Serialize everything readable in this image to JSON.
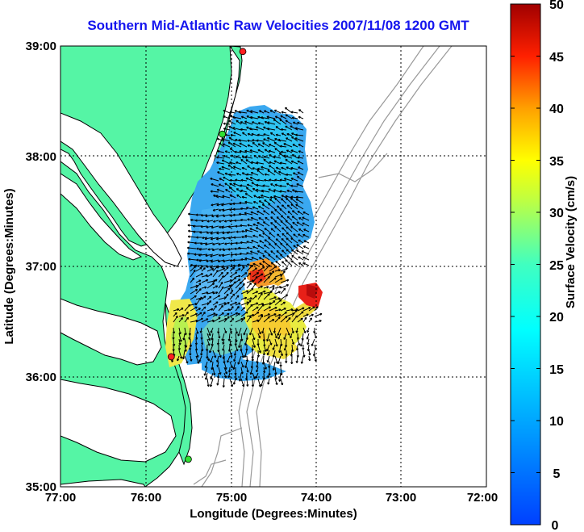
{
  "title": "Southern Mid-Atlantic Raw Velocities 2007/11/08 1200 GMT",
  "x_axis": {
    "label": "Longitude (Degrees:Minutes)",
    "ticks": [
      "77:00",
      "76:00",
      "75:00",
      "74:00",
      "73:00",
      "72:00"
    ]
  },
  "y_axis": {
    "label": "Latitude (Degrees:Minutes)",
    "ticks": [
      "39:00",
      "38:00",
      "37:00",
      "36:00",
      "35:00"
    ]
  },
  "colorbar": {
    "label": "Surface Velocity (cm/s)",
    "ticks": [
      "50",
      "45",
      "40",
      "35",
      "30",
      "25",
      "20",
      "15",
      "10",
      "5",
      "0"
    ],
    "min": 0,
    "max": 50,
    "colormap": "jet"
  },
  "map_extent": {
    "lon_west": -77,
    "lon_east": -72,
    "lat_south": 35,
    "lat_north": 39
  },
  "colors": {
    "title": "#1515ee",
    "land": "#55f5a5",
    "bathymetry": "#999999",
    "grid": "#000000",
    "station": "#ff2020",
    "station_alt": "#30e030"
  },
  "stations": [
    {
      "lon": -74.86,
      "lat": 38.95,
      "color": "red"
    },
    {
      "lon": -75.1,
      "lat": 38.2,
      "color": "green"
    },
    {
      "lon": -75.7,
      "lat": 36.18,
      "color": "red"
    },
    {
      "lon": -75.5,
      "lat": 35.25,
      "color": "green"
    }
  ]
}
